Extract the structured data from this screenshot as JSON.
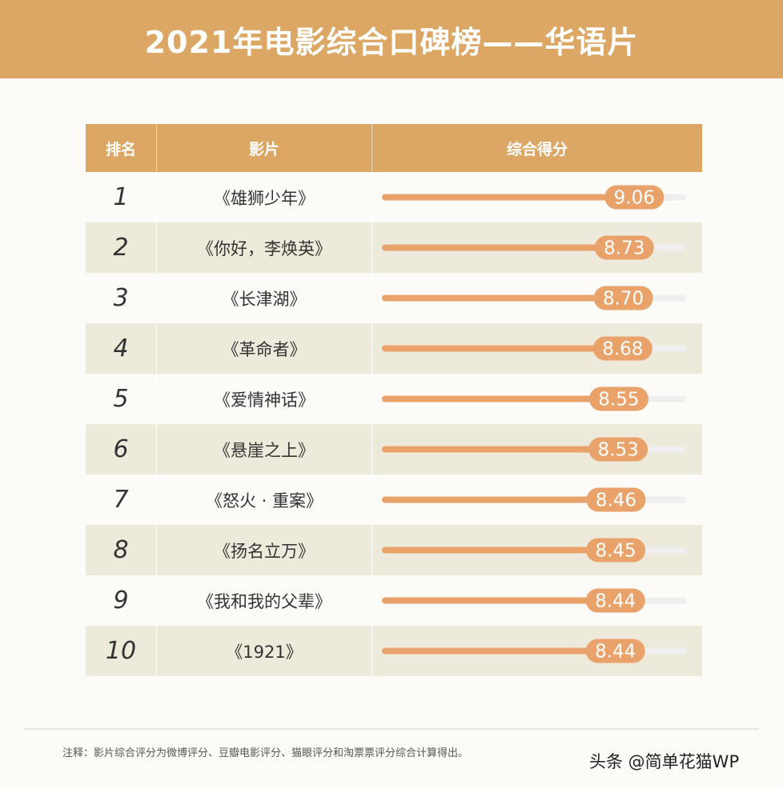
{
  "title": "2021年电影综合口碑榜——华语片",
  "headers": {
    "rank": "排名",
    "film": "影片",
    "score": "综合得分"
  },
  "chart_data": {
    "type": "bar",
    "title": "2021年电影综合口碑榜——华语片",
    "categories": [
      "《雄狮少年》",
      "《你好，李焕英》",
      "《长津湖》",
      "《革命者》",
      "《爱情神话》",
      "《悬崖之上》",
      "《怒火 · 重案》",
      "《扬名立万》",
      "《我和我的父辈》",
      "《1921》"
    ],
    "ranks": [
      "1",
      "2",
      "3",
      "4",
      "5",
      "6",
      "7",
      "8",
      "9",
      "10"
    ],
    "values": [
      9.06,
      8.73,
      8.7,
      8.68,
      8.55,
      8.53,
      8.46,
      8.45,
      8.44,
      8.44
    ],
    "labels": [
      "9.06",
      "8.73",
      "8.70",
      "8.68",
      "8.55",
      "8.53",
      "8.46",
      "8.45",
      "8.44",
      "8.44"
    ],
    "xlim": [
      0,
      10
    ],
    "colors": {
      "bar": "#e9a36a",
      "track": "#efefef",
      "header": "#dca764",
      "alt_row": "#eeeadb"
    }
  },
  "note": "注释：影片综合评分为微博评分、豆瓣电影评分、猫眼评分和淘票票评分综合计算得出。",
  "watermark": "头条 @简单花猫WP"
}
